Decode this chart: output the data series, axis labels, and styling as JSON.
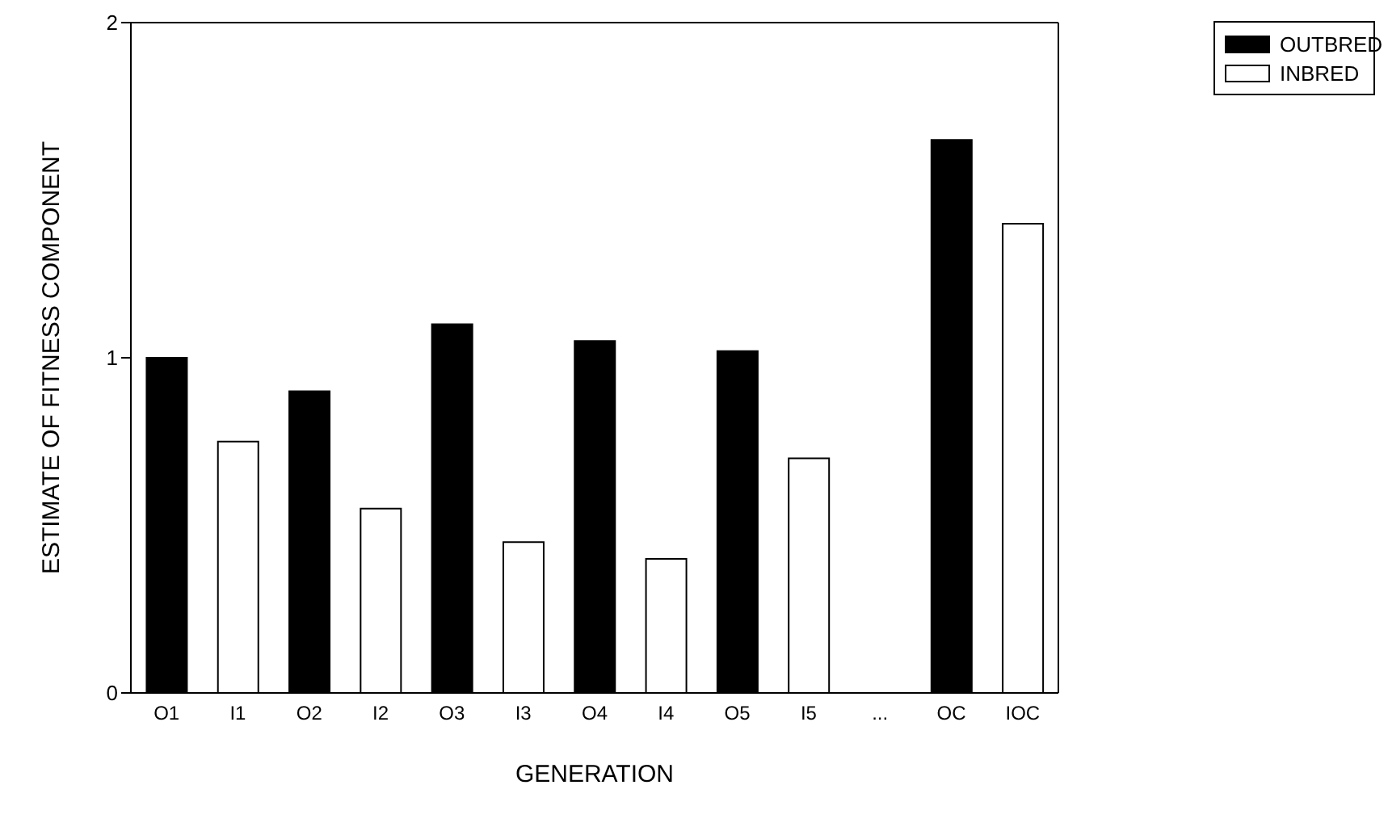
{
  "chart_data": {
    "type": "bar",
    "xlabel": "GENERATION",
    "ylabel": "ESTIMATE OF FITNESS COMPONENT",
    "categories": [
      "O1",
      "I1",
      "O2",
      "I2",
      "O3",
      "I3",
      "O4",
      "I4",
      "O5",
      "I5",
      "...",
      "OC",
      "IOC"
    ],
    "series": [
      {
        "name": "OUTBRED",
        "color": "#000000",
        "values": [
          1.0,
          null,
          0.9,
          null,
          1.1,
          null,
          1.05,
          null,
          1.02,
          null,
          null,
          1.65,
          null
        ]
      },
      {
        "name": "INBRED",
        "color": "#ffffff",
        "values": [
          null,
          0.75,
          null,
          0.55,
          null,
          0.45,
          null,
          0.4,
          null,
          0.7,
          null,
          null,
          1.4
        ]
      }
    ],
    "ylim": [
      0,
      2
    ],
    "yticks": [
      0,
      1,
      2
    ],
    "legend": "top right"
  }
}
